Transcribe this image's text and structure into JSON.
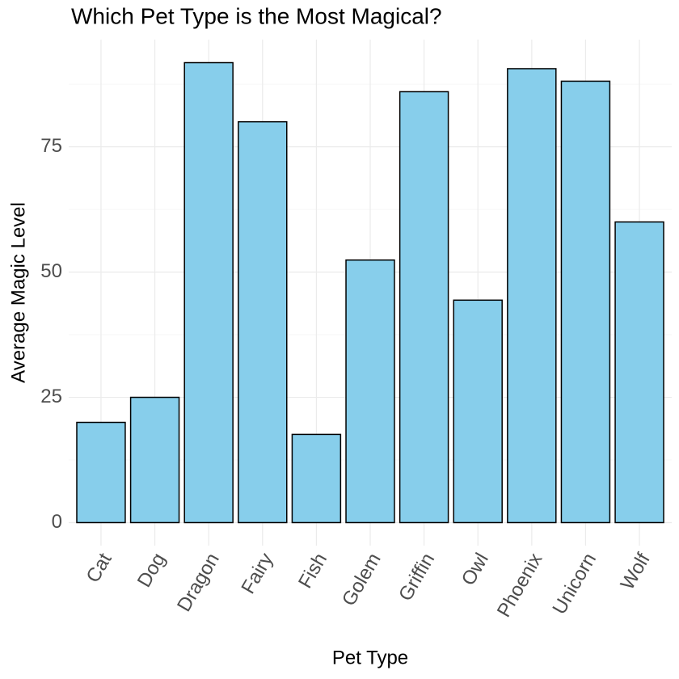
{
  "chart_data": {
    "type": "bar",
    "title": "Which Pet Type is the Most Magical?",
    "x_label": "Pet Type",
    "y_label": "Average Magic Level",
    "categories": [
      "Cat",
      "Dog",
      "Dragon",
      "Fairy",
      "Fish",
      "Golem",
      "Griffin",
      "Owl",
      "Phoenix",
      "Unicorn",
      "Wolf"
    ],
    "values": [
      20,
      25,
      91.8,
      80,
      17.6,
      52.4,
      86,
      44.4,
      90.6,
      88.1,
      60
    ],
    "color": "#87ceeb",
    "edge_color": "#000000",
    "ylim": [
      -4.6,
      96.4
    ],
    "yticks": [
      0,
      25,
      50,
      75
    ],
    "grid": true
  }
}
